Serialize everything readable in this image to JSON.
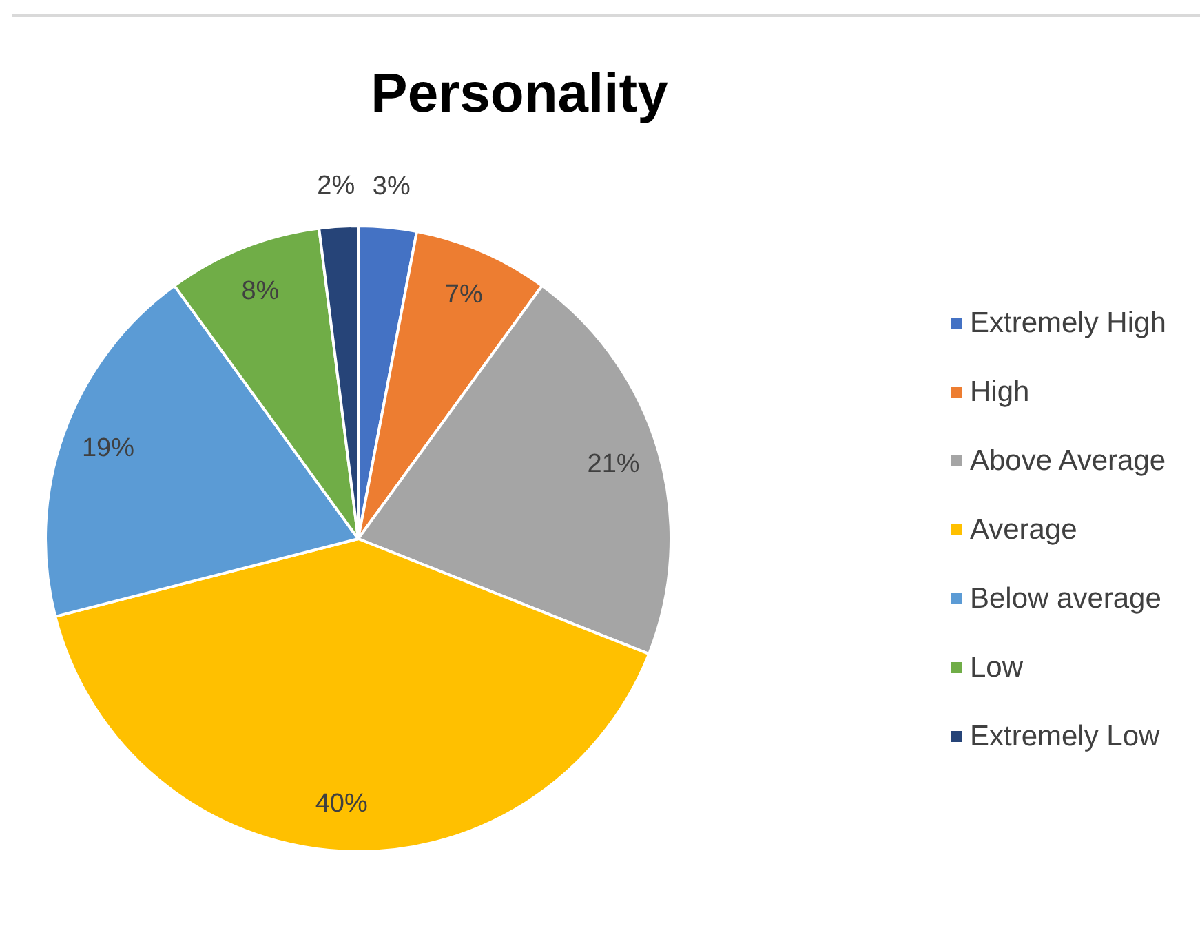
{
  "chart_data": {
    "type": "pie",
    "title": "Personality",
    "categories": [
      "Extremely High",
      "High",
      "Above Average",
      "Average",
      "Below average",
      "Low",
      "Extremely Low"
    ],
    "values": [
      3,
      7,
      21,
      40,
      19,
      8,
      2
    ],
    "colors": [
      "#4472c4",
      "#ed7d31",
      "#a5a5a5",
      "#ffc000",
      "#5b9bd5",
      "#70ad47",
      "#264478"
    ],
    "value_labels": [
      "3%",
      "7%",
      "21%",
      "40%",
      "19%",
      "8%",
      "2%"
    ],
    "legend": "right"
  }
}
